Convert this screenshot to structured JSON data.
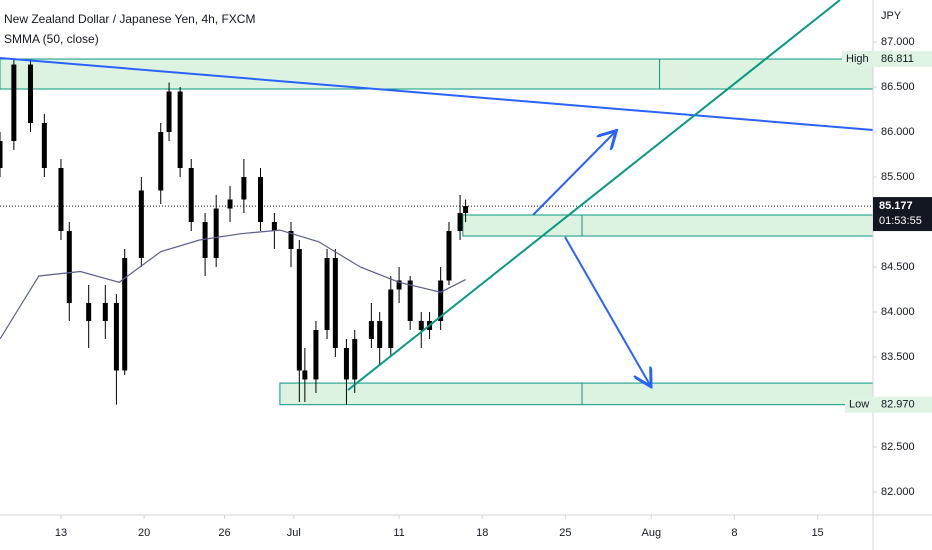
{
  "chart_data": {
    "type": "candlestick",
    "title": "New Zealand Dollar / Japanese Yen, 4h, FXCM",
    "currency": "JPY",
    "candle_color": "#000000",
    "x": [
      0,
      5,
      11,
      16,
      22,
      25,
      32,
      38,
      42,
      45,
      51,
      58,
      61,
      65,
      69,
      74,
      78,
      83,
      88,
      94,
      99,
      105,
      108,
      110,
      114,
      118,
      121,
      125,
      128,
      134,
      137,
      141,
      144,
      148,
      152,
      155,
      159,
      162,
      166,
      168
    ],
    "open": [
      85.6,
      85.9,
      86.75,
      86.1,
      85.6,
      84.9,
      84.1,
      83.9,
      84.1,
      83.35,
      84.6,
      85.35,
      86.0,
      86.45,
      85.6,
      85.0,
      84.6,
      85.15,
      85.25,
      85.5,
      85.0,
      84.9,
      84.7,
      83.35,
      83.25,
      83.8,
      84.6,
      83.6,
      83.25,
      83.7,
      83.9,
      83.6,
      84.25,
      84.35,
      83.9,
      83.8,
      83.9,
      84.35,
      84.9,
      85.1
    ],
    "high": [
      86.0,
      86.81,
      86.8,
      86.2,
      85.7,
      85.0,
      84.3,
      84.3,
      84.2,
      84.7,
      85.5,
      86.1,
      86.55,
      86.5,
      85.7,
      85.1,
      85.3,
      85.4,
      85.7,
      85.6,
      85.1,
      85.0,
      84.8,
      83.6,
      83.9,
      84.7,
      84.7,
      83.7,
      83.8,
      84.1,
      84.0,
      84.4,
      84.5,
      84.4,
      84.0,
      84.0,
      84.5,
      85.0,
      85.3,
      85.25
    ],
    "low": [
      85.5,
      85.8,
      86.0,
      85.5,
      84.8,
      83.9,
      83.6,
      83.7,
      82.97,
      83.3,
      84.5,
      85.2,
      85.9,
      85.5,
      84.9,
      84.4,
      84.5,
      85.0,
      85.1,
      84.9,
      84.7,
      84.5,
      83.0,
      83.0,
      83.1,
      83.7,
      83.5,
      82.97,
      83.1,
      83.6,
      83.4,
      83.5,
      84.1,
      83.8,
      83.6,
      83.7,
      83.8,
      84.3,
      84.8,
      85.0
    ],
    "close": [
      85.9,
      86.75,
      86.1,
      85.6,
      84.9,
      84.1,
      83.9,
      84.1,
      83.35,
      84.6,
      85.35,
      86.0,
      86.45,
      85.6,
      85.0,
      84.6,
      85.15,
      85.25,
      85.5,
      85.0,
      84.9,
      84.7,
      83.35,
      83.25,
      83.8,
      84.6,
      83.6,
      83.25,
      83.7,
      83.9,
      83.6,
      84.25,
      84.35,
      83.9,
      83.8,
      83.9,
      84.35,
      84.9,
      85.1,
      85.177
    ],
    "smma": {
      "name": "SMMA (50, close)",
      "color": "#5b5f8f",
      "x": [
        0,
        14,
        29,
        43,
        58,
        72,
        87,
        101,
        115,
        130,
        144,
        159,
        168
      ],
      "values": [
        83.7,
        84.4,
        84.45,
        84.33,
        84.67,
        84.8,
        84.87,
        84.91,
        84.78,
        84.5,
        84.33,
        84.22,
        84.36
      ]
    },
    "zones": [
      {
        "top": 86.811,
        "bottom": 86.478,
        "x_start": 0,
        "x_split": 238
      },
      {
        "top": 85.078,
        "bottom": 84.844,
        "x_start": 167,
        "x_split": 210
      },
      {
        "top": 83.21,
        "bottom": 82.97,
        "x_start": 101,
        "x_split": 210
      }
    ],
    "high_marker": {
      "text": "High",
      "value": 86.811
    },
    "low_marker": {
      "text": "Low",
      "value": 82.97,
      "value_label": "82.970"
    },
    "last_price": {
      "value": 85.177,
      "countdown": "01:53:55"
    },
    "xlim": [
      0,
      315
    ],
    "xticks": [
      {
        "value": 22,
        "label": "13"
      },
      {
        "value": 52,
        "label": "20"
      },
      {
        "value": 81,
        "label": "26"
      },
      {
        "value": 106,
        "label": "Jul"
      },
      {
        "value": 144,
        "label": "11"
      },
      {
        "value": 174,
        "label": "18"
      },
      {
        "value": 204,
        "label": "25"
      },
      {
        "value": 235,
        "label": "Aug"
      },
      {
        "value": 265,
        "label": "8"
      },
      {
        "value": 295,
        "label": "15"
      }
    ],
    "ylim": [
      81.744,
      87.467
    ],
    "yticks": [
      {
        "value": 87,
        "label": "87.000"
      },
      {
        "value": 86.5,
        "label": "86.500"
      },
      {
        "value": 86,
        "label": "86.000"
      },
      {
        "value": 85.5,
        "label": "85.500"
      },
      {
        "value": 84.5,
        "label": "84.500"
      },
      {
        "value": 84,
        "label": "84.000"
      },
      {
        "value": 83.5,
        "label": "83.500"
      },
      {
        "value": 82.5,
        "label": "82.500"
      },
      {
        "value": 82,
        "label": "82.000"
      }
    ]
  }
}
